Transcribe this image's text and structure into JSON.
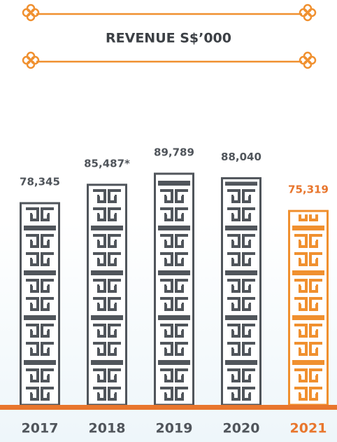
{
  "chart_data": {
    "type": "bar",
    "title": "REVENUE S$’000",
    "categories": [
      "2017",
      "2018",
      "2019",
      "2020",
      "2021"
    ],
    "values": [
      78345,
      85487,
      89789,
      88040,
      75319
    ],
    "value_labels": [
      "78,345",
      "85,487*",
      "89,789",
      "88,040",
      "75,319"
    ],
    "colors": [
      "#50555b",
      "#50555b",
      "#50555b",
      "#50555b",
      "#f0902f"
    ],
    "label_colors": [
      "#50555b",
      "#50555b",
      "#50555b",
      "#50555b",
      "#e8762d"
    ]
  }
}
